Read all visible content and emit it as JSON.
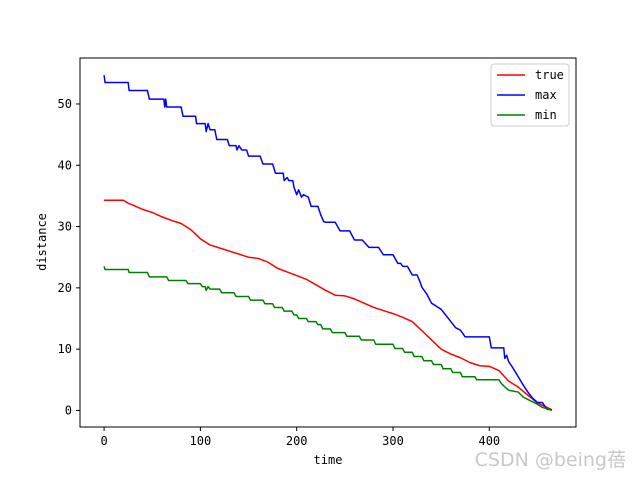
{
  "chart_data": {
    "type": "line",
    "xlabel": "time",
    "ylabel": "distance",
    "xlim": [
      -25,
      490
    ],
    "ylim": [
      -2.7,
      57.5
    ],
    "xticks": [
      0,
      100,
      200,
      300,
      400
    ],
    "yticks": [
      0,
      10,
      20,
      30,
      40,
      50
    ],
    "grid": false,
    "legend_position": "top-right",
    "series": [
      {
        "name": "true",
        "color": "#ff0000",
        "x": [
          0,
          20,
          25,
          30,
          40,
          50,
          60,
          70,
          80,
          90,
          100,
          110,
          120,
          130,
          140,
          150,
          160,
          170,
          180,
          190,
          200,
          210,
          220,
          230,
          240,
          250,
          260,
          270,
          280,
          290,
          300,
          310,
          320,
          330,
          340,
          350,
          360,
          370,
          380,
          390,
          400,
          410,
          420,
          430,
          440,
          450,
          460,
          465
        ],
        "values": [
          34.3,
          34.3,
          33.8,
          33.5,
          32.8,
          32.3,
          31.6,
          31.0,
          30.5,
          29.5,
          28.0,
          27.0,
          26.5,
          26.0,
          25.5,
          25.0,
          24.8,
          24.2,
          23.2,
          22.6,
          22.0,
          21.4,
          20.5,
          19.6,
          18.8,
          18.7,
          18.2,
          17.5,
          16.8,
          16.3,
          15.8,
          15.2,
          14.5,
          13.0,
          11.5,
          10.0,
          9.2,
          8.6,
          7.8,
          7.3,
          7.2,
          6.5,
          4.8,
          3.8,
          2.5,
          1.2,
          0.5,
          0.1
        ]
      },
      {
        "name": "max",
        "color": "#0000ff",
        "x": [
          0,
          1,
          25,
          26,
          45,
          47,
          62,
          63,
          64,
          65,
          80,
          82,
          95,
          96,
          105,
          106,
          108,
          110,
          115,
          117,
          128,
          130,
          137,
          138,
          140,
          143,
          148,
          150,
          162,
          165,
          175,
          178,
          186,
          187,
          190,
          192,
          196,
          197,
          200,
          202,
          205,
          207,
          212,
          215,
          222,
          225,
          228,
          230,
          240,
          245,
          255,
          260,
          268,
          275,
          285,
          290,
          300,
          305,
          308,
          310,
          315,
          320,
          325,
          328,
          330,
          335,
          340,
          345,
          350,
          355,
          360,
          365,
          370,
          375,
          380,
          385,
          400,
          402,
          415,
          416,
          418,
          420,
          425,
          430,
          435,
          440,
          445,
          450,
          455,
          460,
          465
        ],
        "values": [
          54.7,
          53.5,
          53.5,
          52.2,
          52.2,
          50.8,
          50.8,
          49.5,
          50.8,
          49.5,
          49.5,
          48.0,
          48.0,
          46.8,
          46.8,
          45.5,
          46.8,
          45.8,
          45.8,
          44.2,
          44.2,
          43.2,
          43.2,
          42.5,
          43.2,
          42.5,
          42.5,
          41.5,
          41.5,
          40.2,
          40.2,
          38.7,
          38.7,
          37.5,
          38.0,
          37.5,
          37.5,
          36.5,
          35.2,
          36.0,
          34.8,
          35.2,
          34.8,
          33.3,
          33.3,
          31.9,
          30.8,
          30.7,
          30.7,
          29.3,
          29.3,
          27.8,
          27.8,
          26.6,
          26.6,
          25.4,
          25.4,
          24.0,
          24.0,
          23.5,
          23.5,
          22.1,
          22.1,
          21.0,
          20.1,
          19.0,
          17.5,
          17.0,
          16.5,
          15.5,
          14.5,
          13.5,
          13.1,
          12.0,
          12.0,
          12.0,
          12.0,
          10.2,
          10.2,
          8.5,
          9.0,
          8.0,
          6.8,
          5.5,
          4.2,
          3.0,
          2.0,
          1.3,
          1.3,
          0.2,
          0.1
        ]
      },
      {
        "name": "min",
        "color": "#008000",
        "x": [
          0,
          1,
          25,
          26,
          45,
          47,
          65,
          67,
          85,
          87,
          100,
          102,
          105,
          106,
          108,
          110,
          120,
          122,
          135,
          137,
          150,
          152,
          165,
          167,
          175,
          177,
          185,
          187,
          195,
          197,
          200,
          202,
          210,
          212,
          220,
          222,
          225,
          227,
          235,
          237,
          250,
          252,
          265,
          267,
          280,
          282,
          300,
          302,
          310,
          312,
          320,
          322,
          330,
          332,
          340,
          342,
          350,
          352,
          360,
          362,
          370,
          372,
          385,
          387,
          410,
          412,
          415,
          420,
          430,
          435,
          440,
          450,
          455,
          460,
          465
        ],
        "values": [
          23.5,
          23.0,
          23.0,
          22.5,
          22.5,
          21.8,
          21.8,
          21.2,
          21.2,
          20.7,
          20.7,
          20.2,
          20.2,
          19.6,
          20.2,
          19.8,
          19.8,
          19.2,
          19.2,
          18.6,
          18.6,
          18.0,
          18.0,
          17.4,
          17.4,
          16.8,
          16.8,
          16.2,
          16.2,
          15.6,
          15.6,
          15.0,
          15.0,
          14.5,
          14.5,
          14.0,
          14.0,
          13.3,
          13.3,
          12.7,
          12.7,
          12.1,
          12.1,
          11.5,
          11.5,
          10.8,
          10.8,
          10.1,
          10.1,
          9.5,
          9.5,
          8.8,
          8.8,
          8.1,
          8.1,
          7.5,
          7.5,
          6.8,
          6.8,
          6.2,
          6.2,
          5.5,
          5.5,
          5.0,
          5.0,
          4.5,
          4.0,
          3.3,
          3.0,
          2.2,
          1.8,
          1.0,
          0.5,
          0.3,
          0.0
        ]
      }
    ]
  },
  "watermark": "CSDN @being蓓"
}
